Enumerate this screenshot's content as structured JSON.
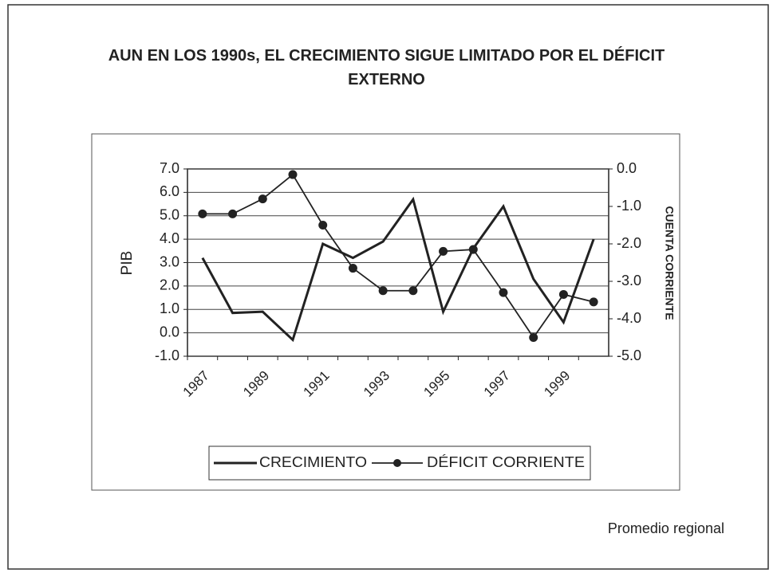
{
  "chart_data": {
    "type": "line",
    "title": "AUN EN LOS 1990s, EL CRECIMIENTO SIGUE LIMITADO POR EL DÉFICIT EXTERNO",
    "categories": [
      "1987",
      null,
      "1989",
      null,
      "1991",
      null,
      "1993",
      null,
      "1995",
      null,
      "1997",
      null,
      "1999",
      null
    ],
    "series": [
      {
        "name": "CRECIMIENTO",
        "color": "#222222",
        "axis": "y",
        "values": [
          3.2,
          0.85,
          0.9,
          -0.3,
          3.8,
          3.2,
          3.9,
          5.7,
          0.9,
          3.6,
          5.4,
          2.3,
          0.45,
          4.0
        ]
      },
      {
        "name": "DÉFICIT CORRIENTE",
        "color": "#222222",
        "axis": "y2",
        "values": [
          -1.2,
          -1.2,
          -0.8,
          -0.15,
          -1.5,
          -2.65,
          -3.25,
          -3.25,
          -2.2,
          -2.15,
          -3.3,
          -4.5,
          -3.35,
          -3.55
        ]
      }
    ],
    "ylabel": "PIB",
    "y2label": "CUENTA CORRIENTE",
    "ylim": [
      -1,
      7
    ],
    "yticks": [
      {
        "value": -1,
        "label": "-1.0"
      },
      {
        "value": 0,
        "label": "0.0"
      },
      {
        "value": 1,
        "label": "1.0"
      },
      {
        "value": 2,
        "label": "2.0"
      },
      {
        "value": 3,
        "label": "3.0"
      },
      {
        "value": 4,
        "label": "4.0"
      },
      {
        "value": 5,
        "label": "5.0"
      },
      {
        "value": 6,
        "label": "6.0"
      },
      {
        "value": 7,
        "label": "7.0"
      }
    ],
    "y2lim": [
      -5,
      0
    ],
    "y2ticks": [
      {
        "value": -5,
        "label": "-5.0"
      },
      {
        "value": -4,
        "label": "-4.0"
      },
      {
        "value": -3,
        "label": "-3.0"
      },
      {
        "value": -2,
        "label": "-2.0"
      },
      {
        "value": -1,
        "label": "-1.0"
      },
      {
        "value": 0,
        "label": "0.0"
      }
    ],
    "grid": true,
    "annotation": "Promedio regional"
  }
}
